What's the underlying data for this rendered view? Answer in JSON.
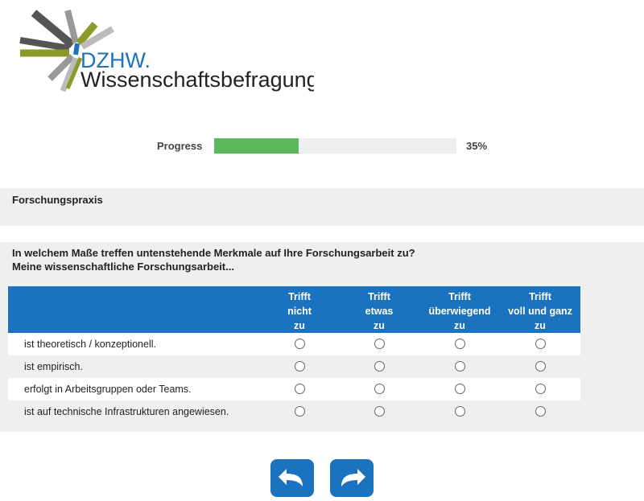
{
  "header": {
    "logo_brand": "DZHW.",
    "logo_subtitle": "Wissenschaftsbefragung"
  },
  "progress": {
    "label": "Progress",
    "value": 35,
    "value_label": "35%"
  },
  "section": {
    "title": "Forschungspraxis"
  },
  "question": {
    "lines": [
      "In welchem Maße treffen untenstehende Merkmale auf Ihre Forschungsarbeit zu?",
      "Meine wissenschaftliche Forschungsarbeit..."
    ],
    "columns": [
      [
        "Trifft",
        "nicht",
        "zu"
      ],
      [
        "Trifft",
        "etwas",
        "zu"
      ],
      [
        "Trifft",
        "überwiegend",
        "zu"
      ],
      [
        "Trifft",
        "voll und ganz",
        "zu"
      ]
    ],
    "rows": [
      "ist theoretisch / konzeptionell.",
      "ist empirisch.",
      "erfolgt in Arbeitsgruppen oder Teams.",
      "ist auf technische Infrastrukturen angewiesen."
    ]
  }
}
